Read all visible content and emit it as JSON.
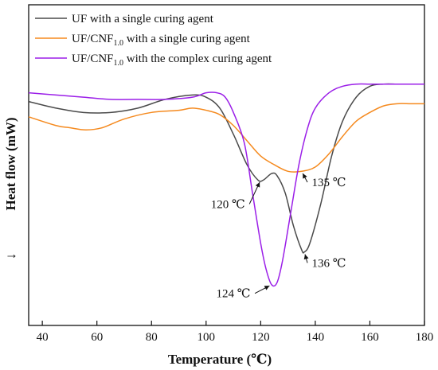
{
  "chart_data": {
    "type": "line",
    "xlabel": "Temperature (℃)",
    "ylabel": "Heat flow (mW)",
    "xlim": [
      35,
      180
    ],
    "ylim": [
      0,
      100
    ],
    "x_ticks": [
      "40",
      "60",
      "80",
      "100",
      "120",
      "140",
      "160",
      "180"
    ],
    "y_ticks_shown": false,
    "grid": false,
    "legend_position": "top-left",
    "down_arrow": "↓",
    "series": [
      {
        "name": "UF with a single curing agent",
        "name_parts": [
          "UF with a single curing agent",
          "",
          ""
        ],
        "color": "#4a4a4a",
        "x": [
          35,
          45,
          55,
          65,
          75,
          85,
          95,
          100,
          105,
          110,
          115,
          119,
          121,
          124,
          126,
          129,
          132,
          135,
          136,
          138,
          142,
          146,
          150,
          155,
          160,
          165,
          170,
          175,
          180
        ],
        "y": [
          87,
          84,
          82,
          82,
          84,
          88,
          90,
          89,
          84,
          72,
          58,
          51,
          51,
          54,
          53,
          45,
          30,
          19,
          18,
          22,
          40,
          62,
          78,
          89,
          94,
          95,
          95,
          95,
          95
        ]
      },
      {
        "name": "UF/CNF1.0 with a single curing agent",
        "name_parts": [
          "UF/CNF",
          "1.0",
          " with a single curing agent"
        ],
        "color": "#f58a1f",
        "x": [
          35,
          45,
          50,
          56,
          62,
          70,
          80,
          90,
          95,
          100,
          105,
          110,
          115,
          120,
          125,
          130,
          135,
          140,
          145,
          150,
          155,
          160,
          165,
          170,
          175,
          180
        ],
        "y": [
          80,
          76,
          75,
          74,
          75,
          79,
          82,
          83,
          84,
          83,
          81,
          76,
          69,
          62,
          58,
          55,
          55,
          57,
          63,
          71,
          78,
          82,
          85,
          86,
          86,
          86
        ]
      },
      {
        "name": "UF/CNF1.0 with the complex curing agent",
        "name_parts": [
          "UF/CNF",
          "1.0",
          " with the complex curing agent"
        ],
        "color": "#9b1fe8",
        "x": [
          35,
          45,
          55,
          65,
          75,
          85,
          95,
          100,
          104,
          107,
          110,
          114,
          117,
          120,
          122,
          124,
          126,
          128,
          131,
          134,
          137,
          140,
          145,
          150,
          155,
          160,
          165,
          170,
          180
        ],
        "y": [
          91,
          90,
          89,
          88,
          88,
          88,
          89,
          91,
          91,
          89,
          82,
          68,
          45,
          22,
          10,
          3,
          4,
          14,
          36,
          58,
          74,
          84,
          91,
          94,
          95,
          95,
          95,
          95,
          95
        ]
      }
    ],
    "annotations": [
      {
        "text": "120 ℃",
        "at": [
          120,
          51
        ],
        "text_at": [
          108,
          40
        ]
      },
      {
        "text": "135 ℃",
        "at": [
          135,
          55
        ],
        "text_at": [
          145,
          50
        ]
      },
      {
        "text": "136 ℃",
        "at": [
          136,
          18
        ],
        "text_at": [
          145,
          13
        ]
      },
      {
        "text": "124 ℃",
        "at": [
          124,
          3
        ],
        "text_at": [
          110,
          -1
        ]
      }
    ]
  }
}
